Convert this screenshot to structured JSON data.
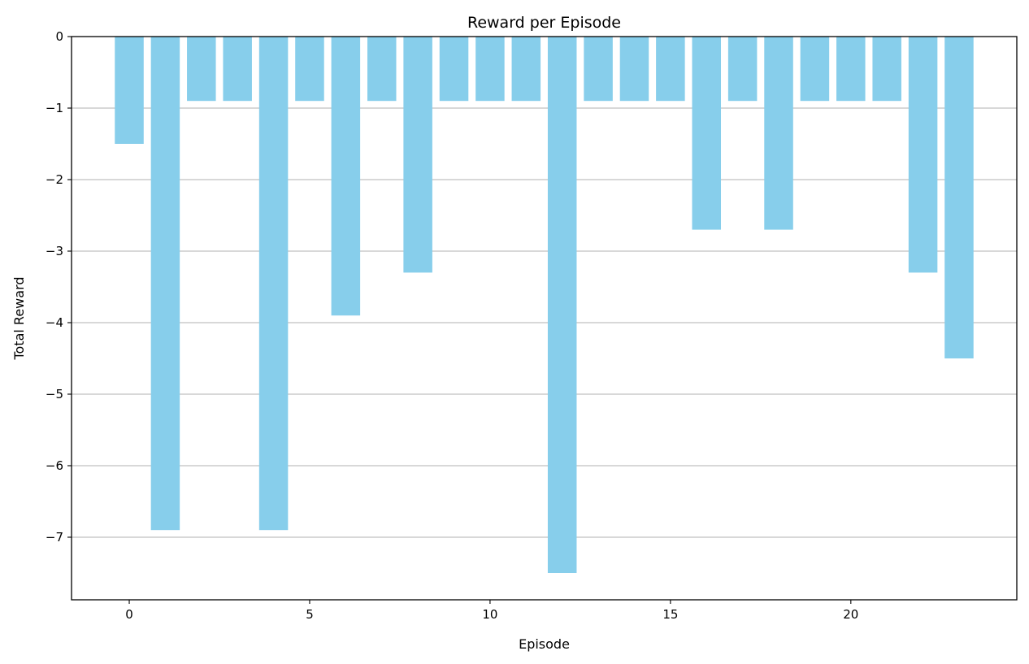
{
  "chart_data": {
    "type": "bar",
    "title": "Reward per Episode",
    "xlabel": "Episode",
    "ylabel": "Total Reward",
    "x": [
      0,
      1,
      2,
      3,
      4,
      5,
      6,
      7,
      8,
      9,
      10,
      11,
      12,
      13,
      14,
      15,
      16,
      17,
      18,
      19,
      20,
      21,
      22,
      23
    ],
    "values": [
      -1.5,
      -6.9,
      -0.9,
      -0.9,
      -6.9,
      -0.9,
      -3.9,
      -0.9,
      -3.3,
      -0.9,
      -0.9,
      -0.9,
      -7.5,
      -0.9,
      -0.9,
      -0.9,
      -2.7,
      -0.9,
      -2.7,
      -0.9,
      -0.9,
      -0.9,
      -3.3,
      -4.5
    ],
    "xlim": [
      -1.6,
      24.6
    ],
    "ylim": [
      -7.875,
      0
    ],
    "xticks": [
      0,
      5,
      10,
      15,
      20
    ],
    "xtick_labels": [
      "0",
      "5",
      "10",
      "15",
      "20"
    ],
    "yticks": [
      0,
      -1,
      -2,
      -3,
      -4,
      -5,
      -6,
      -7
    ],
    "ytick_labels": [
      "0",
      "−1",
      "−2",
      "−3",
      "−4",
      "−5",
      "−6",
      "−7"
    ],
    "grid": "y",
    "bar_color": "#87ceeb"
  }
}
